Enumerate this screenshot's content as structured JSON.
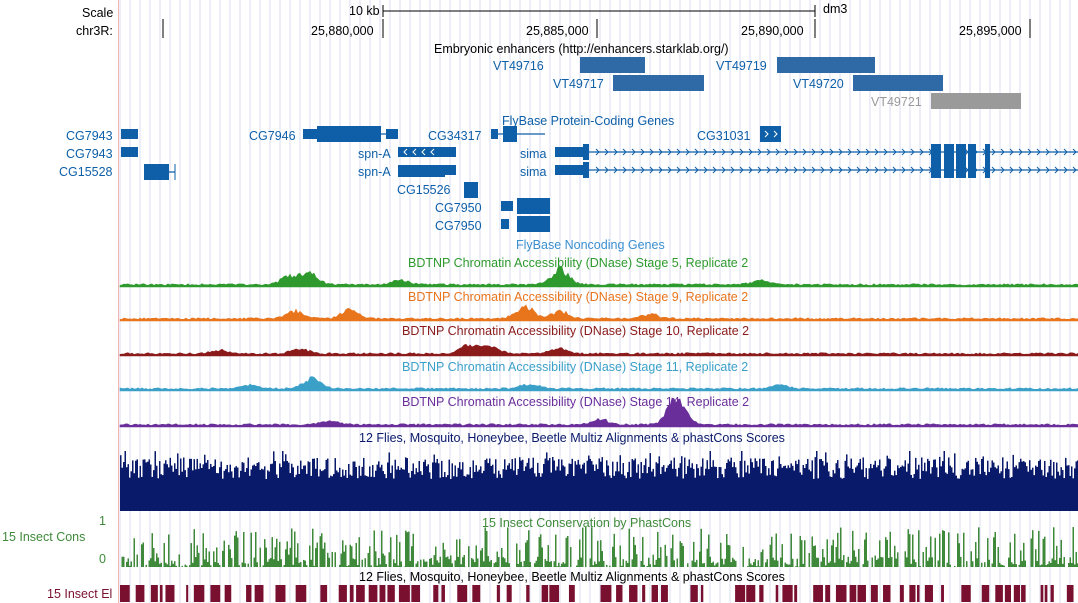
{
  "ruler": {
    "scale_label": "Scale",
    "chrom_label": "chr3R:",
    "scale_bar_label": "10 kb",
    "assembly": "dm3",
    "positions": [
      "25,880,000",
      "25,885,000",
      "25,890,000",
      "25,895,000"
    ]
  },
  "tracks": {
    "enhancers": {
      "title": "Embryonic enhancers (http://enhancers.starklab.org/)",
      "items": [
        "VT49716",
        "VT49717",
        "VT49719",
        "VT49720",
        "VT49721"
      ],
      "colors": {
        "main": "#2f6aa6",
        "gray": "#9a9a9a"
      }
    },
    "flybase_coding": {
      "title": "FlyBase Protein-Coding Genes",
      "genes": [
        "CG7943",
        "CG7943",
        "CG15528",
        "CG7946",
        "spn-A",
        "spn-A",
        "CG15526",
        "CG34317",
        "CG7950",
        "CG7950",
        "CG31031",
        "sima",
        "sima"
      ],
      "color": "#0e5fa8"
    },
    "flybase_noncoding": {
      "title": "FlyBase Noncoding Genes"
    },
    "dnase": [
      {
        "title": "BDTNP Chromatin Accessibility (DNase) Stage 5, Replicate 2",
        "color": "#2e9a2e"
      },
      {
        "title": "BDTNP Chromatin Accessibility (DNase) Stage 9, Replicate 2",
        "color": "#e8741c"
      },
      {
        "title": "BDTNP Chromatin Accessibility (DNase) Stage 10, Replicate 2",
        "color": "#8b1a1a"
      },
      {
        "title": "BDTNP Chromatin Accessibility (DNase) Stage 11, Replicate 2",
        "color": "#3aa0c8"
      },
      {
        "title": "BDTNP Chromatin Accessibility (DNase) Stage 14, Replicate 2",
        "color": "#6a2e9a"
      }
    ],
    "multiz": {
      "title": "12 Flies, Mosquito, Honeybee, Beetle Multiz Alignments & phastCons Scores",
      "color": "#0a1a6b"
    },
    "phastcons": {
      "title": "15 Insect Conservation by PhastCons",
      "side_label": "15 Insect Cons",
      "y_max": "1",
      "y_min": "0",
      "color": "#3f8a3a"
    },
    "elements": {
      "title": "12 Flies, Mosquito, Honeybee, Beetle Multiz Alignments & phastCons Scores",
      "side_label": "15 Insect El",
      "color": "#7a1030"
    }
  }
}
